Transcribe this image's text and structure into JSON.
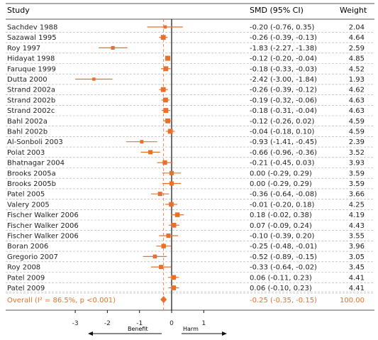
{
  "chart_data": {
    "type": "forest",
    "headers": {
      "study": "Study",
      "effect": "SMD (95% CI)",
      "weight": "Weight"
    },
    "rows": [
      {
        "study": "Sachdev 1988",
        "smd": -0.2,
        "lo": -0.76,
        "hi": 0.35,
        "ci_text": "-0.20 (-0.76, 0.35)",
        "weight": "2.04"
      },
      {
        "study": "Sazawal 1995",
        "smd": -0.26,
        "lo": -0.39,
        "hi": -0.13,
        "ci_text": "-0.26 (-0.39, -0.13)",
        "weight": "4.64"
      },
      {
        "study": "Roy 1997",
        "smd": -1.83,
        "lo": -2.27,
        "hi": -1.38,
        "ci_text": "-1.83 (-2.27, -1.38)",
        "weight": "2.59"
      },
      {
        "study": "Hidayat 1998",
        "smd": -0.12,
        "lo": -0.2,
        "hi": -0.04,
        "ci_text": "-0.12 (-0.20, -0.04)",
        "weight": "4.85"
      },
      {
        "study": "Faruque 1999",
        "smd": -0.18,
        "lo": -0.33,
        "hi": -0.03,
        "ci_text": "-0.18 (-0.33, -0.03)",
        "weight": "4.52"
      },
      {
        "study": "Dutta 2000",
        "smd": -2.42,
        "lo": -3.0,
        "hi": -1.84,
        "ci_text": "-2.42 (-3.00, -1.84)",
        "weight": "1.93"
      },
      {
        "study": "Strand 2002a",
        "smd": -0.26,
        "lo": -0.39,
        "hi": -0.12,
        "ci_text": "-0.26 (-0.39, -0.12)",
        "weight": "4.62"
      },
      {
        "study": "Strand 2002b",
        "smd": -0.19,
        "lo": -0.32,
        "hi": -0.06,
        "ci_text": "-0.19 (-0.32, -0.06)",
        "weight": "4.63"
      },
      {
        "study": "Strand 2002c",
        "smd": -0.18,
        "lo": -0.31,
        "hi": -0.04,
        "ci_text": "-0.18 (-0.31, -0.04)",
        "weight": "4.63"
      },
      {
        "study": "Bahl 2002a",
        "smd": -0.12,
        "lo": -0.26,
        "hi": 0.02,
        "ci_text": "-0.12 (-0.26, 0.02)",
        "weight": "4.59"
      },
      {
        "study": "Bahl 2002b",
        "smd": -0.04,
        "lo": -0.18,
        "hi": 0.1,
        "ci_text": "-0.04 (-0.18, 0.10)",
        "weight": "4.59"
      },
      {
        "study": "Al-Sonboli 2003",
        "smd": -0.93,
        "lo": -1.41,
        "hi": -0.45,
        "ci_text": "-0.93 (-1.41, -0.45)",
        "weight": "2.39"
      },
      {
        "study": "Polat 2003",
        "smd": -0.66,
        "lo": -0.96,
        "hi": -0.36,
        "ci_text": "-0.66 (-0.96, -0.36)",
        "weight": "3.52"
      },
      {
        "study": "Bhatnagar 2004",
        "smd": -0.21,
        "lo": -0.45,
        "hi": 0.03,
        "ci_text": "-0.21 (-0.45, 0.03)",
        "weight": "3.93"
      },
      {
        "study": "Brooks 2005a",
        "smd": 0.0,
        "lo": -0.29,
        "hi": 0.29,
        "ci_text": "0.00 (-0.29, 0.29)",
        "weight": "3.59"
      },
      {
        "study": "Brooks 2005b",
        "smd": 0.0,
        "lo": -0.29,
        "hi": 0.29,
        "ci_text": "0.00 (-0.29, 0.29)",
        "weight": "3.59"
      },
      {
        "study": "Patel 2005",
        "smd": -0.36,
        "lo": -0.64,
        "hi": -0.08,
        "ci_text": "-0.36 (-0.64, -0.08)",
        "weight": "3.66"
      },
      {
        "study": "Valery 2005",
        "smd": -0.01,
        "lo": -0.2,
        "hi": 0.18,
        "ci_text": "-0.01 (-0.20, 0.18)",
        "weight": "4.25"
      },
      {
        "study": "Fischer Walker 2006",
        "smd": 0.18,
        "lo": -0.02,
        "hi": 0.38,
        "ci_text": "0.18 (-0.02, 0.38)",
        "weight": "4.19"
      },
      {
        "study": "Fischer Walker 2006",
        "smd": 0.07,
        "lo": -0.09,
        "hi": 0.24,
        "ci_text": "0.07 (-0.09, 0.24)",
        "weight": "4.43"
      },
      {
        "study": "Fischer Walker 2006",
        "smd": -0.1,
        "lo": -0.39,
        "hi": 0.2,
        "ci_text": "-0.10 (-0.39, 0.20)",
        "weight": "3.55"
      },
      {
        "study": "Boran 2006",
        "smd": -0.25,
        "lo": -0.48,
        "hi": -0.01,
        "ci_text": "-0.25 (-0.48, -0.01)",
        "weight": "3.96"
      },
      {
        "study": "Gregorio 2007",
        "smd": -0.52,
        "lo": -0.89,
        "hi": -0.15,
        "ci_text": "-0.52 (-0.89, -0.15)",
        "weight": "3.05"
      },
      {
        "study": "Roy 2008",
        "smd": -0.33,
        "lo": -0.64,
        "hi": -0.02,
        "ci_text": "-0.33 (-0.64, -0.02)",
        "weight": "3.45"
      },
      {
        "study": "Patel 2009",
        "smd": 0.06,
        "lo": -0.11,
        "hi": 0.23,
        "ci_text": "0.06 (-0.11, 0.23)",
        "weight": "4.41"
      },
      {
        "study": "Patel 2009",
        "smd": 0.06,
        "lo": -0.1,
        "hi": 0.23,
        "ci_text": "0.06 (-0.10, 0.23)",
        "weight": "4.41"
      }
    ],
    "overall": {
      "label": "Overall  (I² = 86.5%, p <0.001)",
      "smd": -0.25,
      "lo": -0.35,
      "hi": -0.15,
      "ci_text": "-0.25 (-0.35, -0.15)",
      "weight": "100.00"
    },
    "xaxis": {
      "range": [
        -3.3,
        1.1
      ],
      "ticks": [
        -3,
        -2,
        -1,
        0,
        1
      ],
      "tick_labels": [
        "-3",
        "-2",
        "-1",
        "0",
        "1"
      ],
      "benefit_label": "Benefit",
      "harm_label": "Harm"
    },
    "reference_line": 0,
    "colors": {
      "marker": "#E8702A",
      "text": "#222222",
      "overall_text": "#E8702A",
      "rule": "#555555",
      "dashed": "#aaaaaa",
      "reference": "#E8702A"
    }
  }
}
